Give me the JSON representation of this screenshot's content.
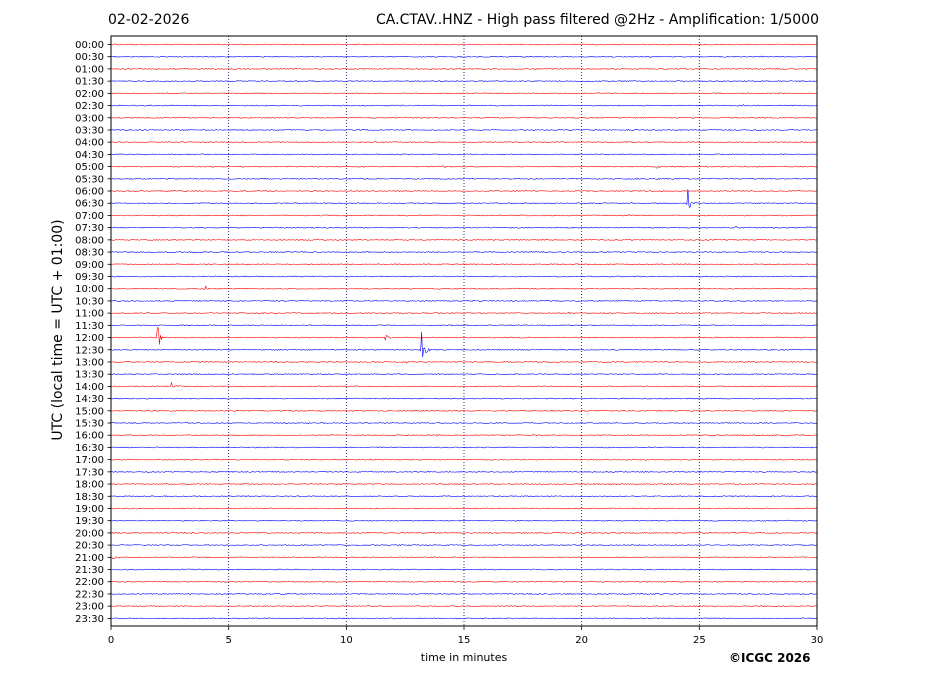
{
  "chart_data": {
    "type": "line",
    "title": "CA.CTAV..HNZ - High pass filtered @2Hz - Amplification: 1/5000",
    "date": "02-02-2026",
    "xlabel": "time in minutes",
    "ylabel": "UTC (local time = UTC + 01:00)",
    "xlim": [
      0,
      30
    ],
    "x_ticks": [
      "0",
      "5",
      "10",
      "15",
      "20",
      "25",
      "30"
    ],
    "vertical_grid_minutes": [
      5,
      10,
      15,
      20,
      25
    ],
    "row_labels": [
      "00:00",
      "00:30",
      "01:00",
      "01:30",
      "02:00",
      "02:30",
      "03:00",
      "03:30",
      "04:00",
      "04:30",
      "05:00",
      "05:30",
      "06:00",
      "06:30",
      "07:00",
      "07:30",
      "08:00",
      "08:30",
      "09:00",
      "09:30",
      "10:00",
      "10:30",
      "11:00",
      "11:30",
      "12:00",
      "12:30",
      "13:00",
      "13:30",
      "14:00",
      "14:30",
      "15:00",
      "15:30",
      "16:00",
      "16:30",
      "17:00",
      "17:30",
      "18:00",
      "18:30",
      "19:00",
      "19:30",
      "20:00",
      "20:30",
      "21:00",
      "21:30",
      "22:00",
      "22:30",
      "23:00",
      "23:30"
    ],
    "trace_colors": [
      "#ff0000",
      "#0000ff"
    ],
    "events": [
      {
        "row": "06:30",
        "minute": 24.5,
        "amplitude": 1.4
      },
      {
        "row": "12:30",
        "minute": 13.2,
        "amplitude": 1.5
      },
      {
        "row": "12:00",
        "minute": 2.0,
        "amplitude": 0.9
      },
      {
        "row": "14:00",
        "minute": 2.6,
        "amplitude": 0.4
      },
      {
        "row": "12:00",
        "minute": 11.7,
        "amplitude": 0.25
      },
      {
        "row": "07:30",
        "minute": 26.5,
        "amplitude": 0.2
      },
      {
        "row": "07:30",
        "minute": 29.6,
        "amplitude": 0.2
      },
      {
        "row": "05:00",
        "minute": 14.1,
        "amplitude": 0.15
      },
      {
        "row": "05:00",
        "minute": 23.2,
        "amplitude": 0.15
      },
      {
        "row": "02:30",
        "minute": 26.8,
        "amplitude": 0.15
      },
      {
        "row": "10:00",
        "minute": 4.0,
        "amplitude": 0.3
      },
      {
        "row": "10:00",
        "minute": 25.0,
        "amplitude": 0.2
      },
      {
        "row": "11:00",
        "minute": 19.5,
        "amplitude": 0.15
      },
      {
        "row": "07:00",
        "minute": 22.0,
        "amplitude": 0.15
      },
      {
        "row": "13:00",
        "minute": 12.6,
        "amplitude": 0.2
      },
      {
        "row": "14:30",
        "minute": 7.1,
        "amplitude": 0.12
      },
      {
        "row": "21:00",
        "minute": 0.1,
        "amplitude": 0.2
      }
    ]
  },
  "copyright": "©ICGC 2026"
}
